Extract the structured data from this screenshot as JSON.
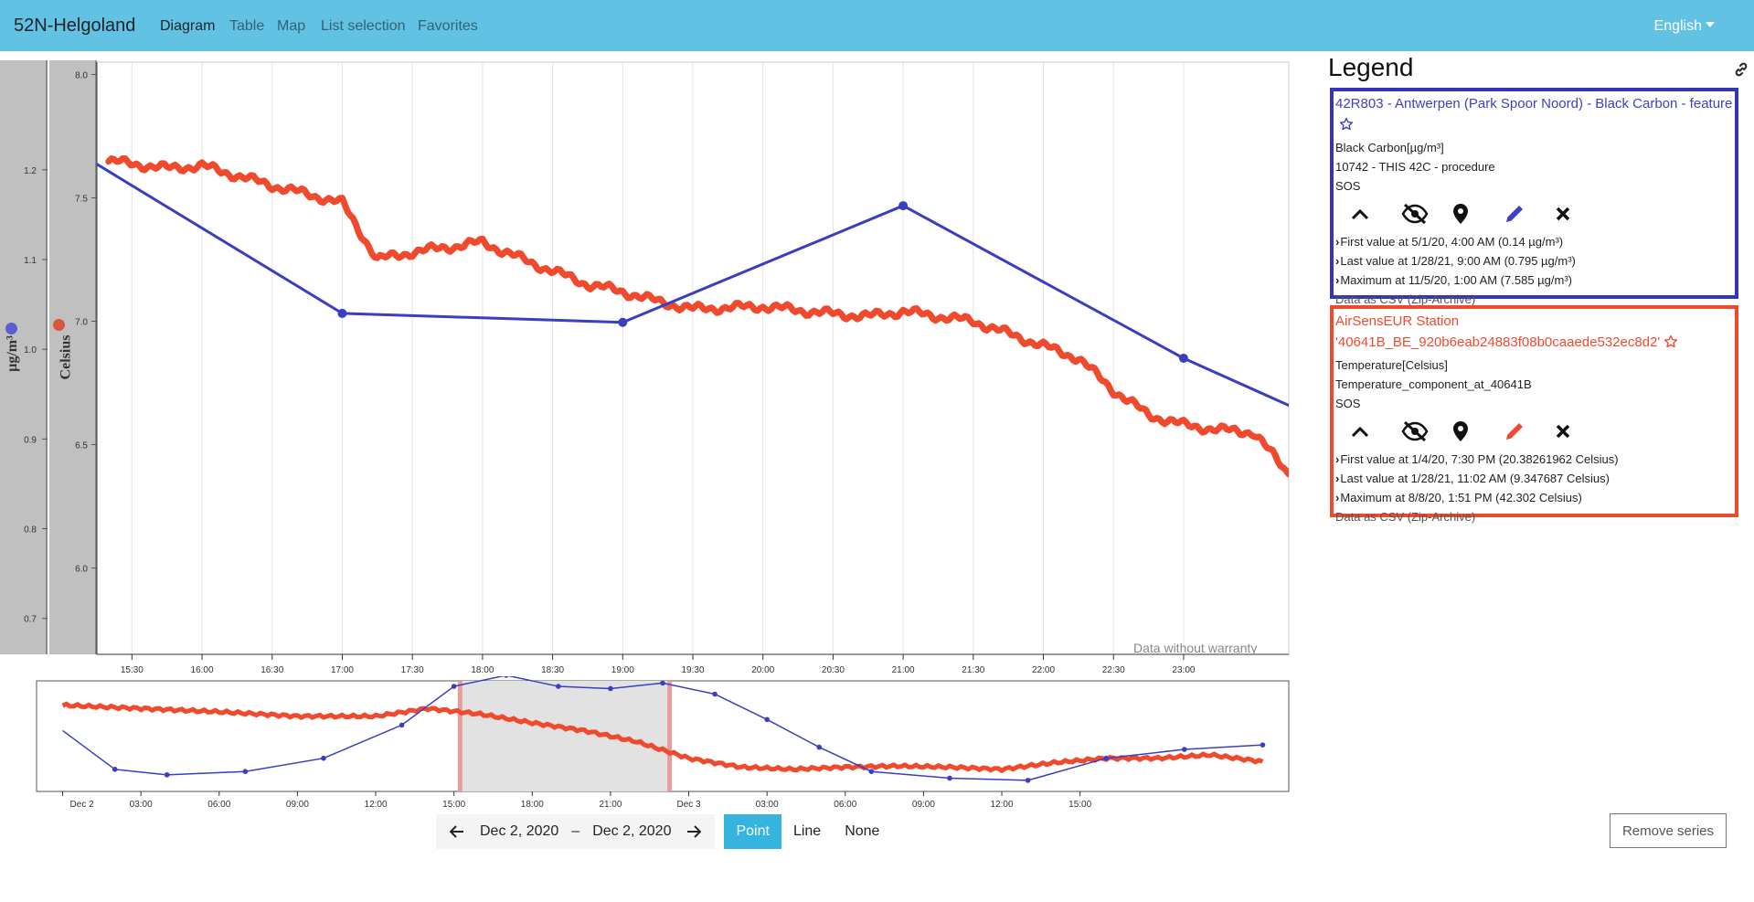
{
  "navbar": {
    "brand": "52N-Helgoland",
    "links": [
      "Diagram",
      "Table",
      "Map",
      "List selection",
      "Favorites"
    ],
    "language": "English"
  },
  "axes": {
    "left_label": "µg/m³",
    "right_label": "Celsius",
    "left_color": "#5a5ed0",
    "right_color": "#d8553e"
  },
  "chart_data": [
    {
      "type": "line",
      "title": "",
      "watermark": "Data without warranty",
      "x_ticks": [
        "15:30",
        "16:00",
        "16:30",
        "17:00",
        "17:30",
        "18:00",
        "18:30",
        "19:00",
        "19:30",
        "20:00",
        "20:30",
        "21:00",
        "21:30",
        "22:00",
        "22:30",
        "23:00"
      ],
      "y_left_ticks": [
        "1.2",
        "1.1",
        "1.0",
        "0.9",
        "0.8",
        "0.7"
      ],
      "y_right_ticks": [
        "8.0",
        "7.5",
        "7.0",
        "6.5",
        "6.0"
      ],
      "y_left_range": [
        0.66,
        1.32
      ],
      "y_right_range": [
        5.65,
        8.05
      ],
      "x_range_hours": [
        "15:15",
        "23:45"
      ],
      "series": [
        {
          "name": "42R803 - Antwerpen (Park Spoor Noord) - Black Carbon - feature",
          "axis": "left",
          "color": "#3a3ec0",
          "x": [
            "15:00",
            "17:00",
            "19:00",
            "21:00",
            "23:00",
            "00:00"
          ],
          "y": [
            1.23,
            1.04,
            1.03,
            1.16,
            0.99,
            0.92
          ]
        },
        {
          "name": "AirSensEUR Station '40641B_BE_920b6eab24883f08b0caaede532ec8d2'",
          "axis": "right",
          "color": "#f04a2e",
          "x": [
            "15:20",
            "15:45",
            "16:00",
            "16:30",
            "17:00",
            "17:15",
            "17:30",
            "18:00",
            "18:20",
            "18:45",
            "19:00",
            "19:15",
            "19:30",
            "20:00",
            "20:30",
            "20:45",
            "21:00",
            "21:30",
            "21:45",
            "22:00",
            "22:15",
            "22:30",
            "22:45",
            "23:00",
            "23:15",
            "23:30",
            "23:45"
          ],
          "y": [
            7.65,
            7.62,
            7.63,
            7.55,
            7.48,
            7.25,
            7.28,
            7.32,
            7.24,
            7.15,
            7.12,
            7.08,
            7.05,
            7.06,
            7.03,
            7.02,
            7.04,
            7.0,
            6.95,
            6.9,
            6.85,
            6.72,
            6.62,
            6.58,
            6.56,
            6.55,
            6.38
          ]
        }
      ]
    },
    {
      "type": "line",
      "title": "",
      "x_ticks": [
        "Dec 2",
        "03:00",
        "06:00",
        "09:00",
        "12:00",
        "15:00",
        "18:00",
        "21:00",
        "Dec 3",
        "03:00",
        "06:00",
        "09:00",
        "12:00",
        "15:00"
      ],
      "selection": [
        "15:15",
        "23:15"
      ],
      "series": [
        {
          "name": "Black Carbon",
          "color": "#3a3ec0",
          "x": [
            0,
            2,
            4,
            7,
            10,
            13,
            15,
            17,
            19,
            21,
            23,
            25,
            27,
            29,
            31,
            34,
            37,
            40,
            43,
            46
          ],
          "y": [
            0.55,
            0.2,
            0.15,
            0.18,
            0.3,
            0.6,
            0.95,
            1.05,
            0.95,
            0.93,
            0.98,
            0.88,
            0.65,
            0.4,
            0.18,
            0.12,
            0.1,
            0.3,
            0.38,
            0.42
          ]
        },
        {
          "name": "Temperature",
          "color": "#f04a2e",
          "x": [
            0,
            3,
            6,
            9,
            12,
            14,
            16,
            18,
            20,
            22,
            24,
            26,
            28,
            30,
            32,
            34,
            36,
            38,
            40,
            42,
            44,
            46
          ],
          "y": [
            0.78,
            0.75,
            0.72,
            0.68,
            0.68,
            0.75,
            0.7,
            0.62,
            0.55,
            0.45,
            0.3,
            0.22,
            0.2,
            0.22,
            0.23,
            0.22,
            0.2,
            0.26,
            0.3,
            0.3,
            0.33,
            0.27
          ]
        }
      ]
    }
  ],
  "timespan": {
    "from": "Dec 2, 2020",
    "dash": "–",
    "to": "Dec 2, 2020",
    "modes": [
      "Point",
      "Line",
      "None"
    ]
  },
  "legend": {
    "title": "Legend",
    "entries": [
      {
        "title": "42R803 - Antwerpen (Park Spoor Noord) - Black Carbon - feature",
        "phenomenon": "Black Carbon[µg/m³]",
        "procedure": "10742 - THIS 42C - procedure",
        "service": "SOS",
        "first": "First value at 5/1/20, 4:00 AM (0.14 µg/m³)",
        "last": "Last value at 1/28/21, 9:00 AM (0.795 µg/m³)",
        "max": "Maximum at 11/5/20, 1:00 AM (7.585 µg/m³)",
        "csv": "Data as CSV (Zip-Archive)",
        "color": "#3535b8"
      },
      {
        "title": "AirSensEUR Station '40641B_BE_920b6eab24883f08b0caaede532ec8d2'",
        "phenomenon": "Temperature[Celsius]",
        "procedure": "Temperature_component_at_40641B",
        "service": "SOS",
        "first": "First value at 1/4/20, 7:30 PM (20.38261962 Celsius)",
        "last": "Last value at 1/28/21, 11:02 AM (9.347687 Celsius)",
        "max": "Maximum at 8/8/20, 1:51 PM (42.302 Celsius)",
        "csv": "Data as CSV (Zip-Archive)",
        "color": "#f04a2e"
      }
    ]
  },
  "remove_button": "Remove series"
}
